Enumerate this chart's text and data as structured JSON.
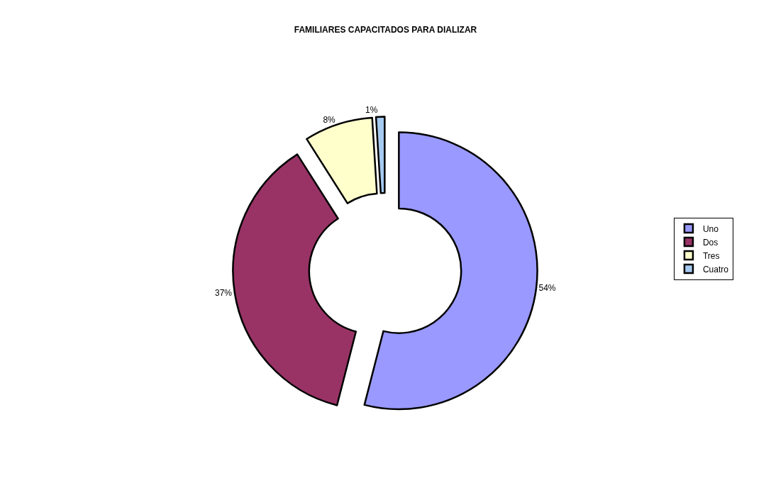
{
  "chart_data": {
    "type": "donut",
    "title": "FAMILIARES CAPACITADOS PARA DIALIZAR",
    "categories": [
      "Uno",
      "Dos",
      "Tres",
      "Cuatro"
    ],
    "values": [
      54,
      37,
      8,
      1
    ],
    "value_labels": [
      "54%",
      "37%",
      "8%",
      "1%"
    ],
    "colors": [
      "#9999ff",
      "#993366",
      "#ffffcc",
      "#a6caf0"
    ],
    "legend": "right"
  }
}
